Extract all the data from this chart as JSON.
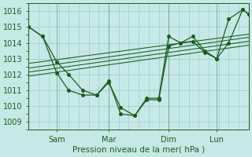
{
  "background_color": "#c8e8e8",
  "grid_color": "#99cccc",
  "line_color": "#1a5c1a",
  "title": "Pression niveau de la mer( hPa )",
  "ylim": [
    1008.5,
    1016.5
  ],
  "yticks": [
    1009,
    1010,
    1011,
    1012,
    1013,
    1014,
    1015,
    1016
  ],
  "xtick_labels": [
    "Sam",
    "Mar",
    "Dim",
    "Lun"
  ],
  "xtick_positions": [
    14,
    40,
    70,
    94
  ],
  "xlim": [
    0,
    110
  ],
  "series1_x": [
    0,
    7,
    14,
    20,
    27,
    34,
    40,
    46,
    53,
    59,
    65,
    70,
    76,
    82,
    88,
    94,
    100,
    107,
    110
  ],
  "series1_y": [
    1015.0,
    1014.4,
    1012.1,
    1011.0,
    1010.7,
    1010.7,
    1011.6,
    1009.5,
    1009.4,
    1010.4,
    1010.4,
    1013.8,
    1014.0,
    1014.1,
    1013.4,
    1013.0,
    1015.5,
    1016.1,
    1015.8
  ],
  "series2_x": [
    0,
    7,
    14,
    20,
    27,
    34,
    40,
    46,
    53,
    59,
    65,
    70,
    76,
    82,
    88,
    94,
    100,
    107,
    110
  ],
  "series2_y": [
    1015.0,
    1014.4,
    1012.8,
    1012.0,
    1011.0,
    1010.7,
    1011.5,
    1009.9,
    1009.4,
    1010.5,
    1010.5,
    1014.4,
    1014.0,
    1014.4,
    1013.5,
    1013.0,
    1014.0,
    1016.1,
    1015.8
  ],
  "trend_lines": [
    {
      "x": [
        0,
        110
      ],
      "y": [
        1012.7,
        1014.55
      ]
    },
    {
      "x": [
        0,
        110
      ],
      "y": [
        1012.4,
        1014.35
      ]
    },
    {
      "x": [
        0,
        110
      ],
      "y": [
        1012.15,
        1014.1
      ]
    },
    {
      "x": [
        0,
        110
      ],
      "y": [
        1011.9,
        1013.85
      ]
    }
  ],
  "marker_size": 2.5,
  "lw": 0.9
}
